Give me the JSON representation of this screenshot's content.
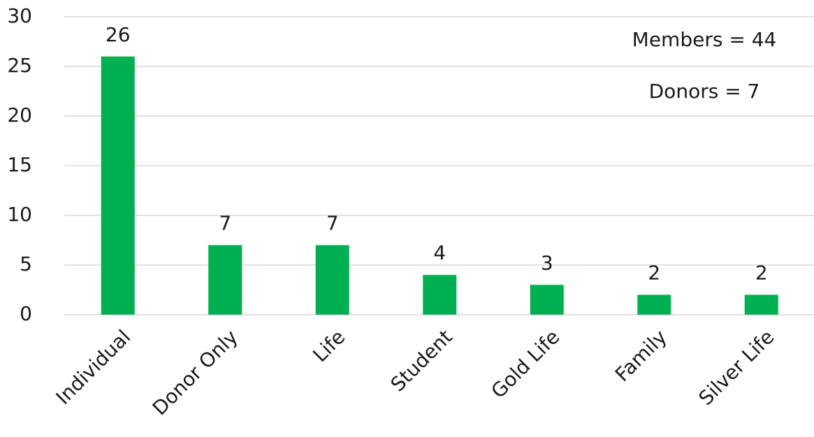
{
  "chart_data": {
    "type": "bar",
    "categories": [
      "Individual",
      "Donor Only",
      "Life",
      "Student",
      "Gold Life",
      "Family",
      "Silver Life"
    ],
    "values": [
      26,
      7,
      7,
      4,
      3,
      2,
      2
    ],
    "color": "#00b050",
    "ylim": [
      0,
      30
    ],
    "yticks": [
      0,
      5,
      10,
      15,
      20,
      25,
      30
    ],
    "grid": true,
    "annotations": [
      "Members = 44",
      "Donors = 7"
    ]
  }
}
